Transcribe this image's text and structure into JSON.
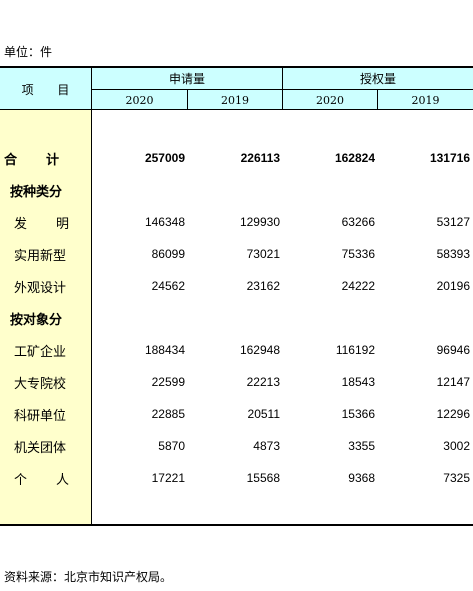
{
  "unit_label": "单位：件",
  "header": {
    "item": "项 目",
    "group_applications": "申请量",
    "group_grants": "授权量",
    "years": [
      "2020",
      "2019",
      "2020",
      "2019"
    ]
  },
  "rows": [
    {
      "label": "合　计",
      "values": [
        "257009",
        "226113",
        "162824",
        "131716"
      ]
    },
    {
      "label": "按种类分",
      "values": [
        "",
        "",
        "",
        ""
      ]
    },
    {
      "label": "发　明",
      "values": [
        "146348",
        "129930",
        "63266",
        "53127"
      ]
    },
    {
      "label": "实用新型",
      "values": [
        "86099",
        "73021",
        "75336",
        "58393"
      ]
    },
    {
      "label": "外观设计",
      "values": [
        "24562",
        "23162",
        "24222",
        "20196"
      ]
    },
    {
      "label": "按对象分",
      "values": [
        "",
        "",
        "",
        ""
      ]
    },
    {
      "label": "工矿企业",
      "values": [
        "188434",
        "162948",
        "116192",
        "96946"
      ]
    },
    {
      "label": "大专院校",
      "values": [
        "22599",
        "22213",
        "18543",
        "12147"
      ]
    },
    {
      "label": "科研单位",
      "values": [
        "22885",
        "20511",
        "15366",
        "12296"
      ]
    },
    {
      "label": "机关团体",
      "values": [
        "5870",
        "4873",
        "3355",
        "3002"
      ]
    },
    {
      "label": "个　人",
      "values": [
        "17221",
        "15568",
        "9368",
        "7325"
      ]
    }
  ],
  "source": "资料来源：北京市知识产权局。"
}
